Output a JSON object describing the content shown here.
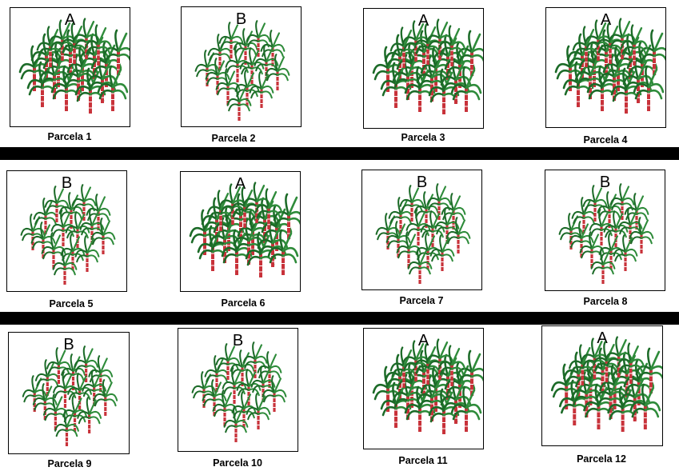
{
  "plots": [
    {
      "id": 1,
      "letter": "A",
      "label": "Parcela 1"
    },
    {
      "id": 2,
      "letter": "B",
      "label": "Parcela 2"
    },
    {
      "id": 3,
      "letter": "A",
      "label": "Parcela 3"
    },
    {
      "id": 4,
      "letter": "A",
      "label": "Parcela 4"
    },
    {
      "id": 5,
      "letter": "B",
      "label": "Parcela 5"
    },
    {
      "id": 6,
      "letter": "A",
      "label": "Parcela 6"
    },
    {
      "id": 7,
      "letter": "B",
      "label": "Parcela 7"
    },
    {
      "id": 8,
      "letter": "B",
      "label": "Parcela 8"
    },
    {
      "id": 9,
      "letter": "B",
      "label": "Parcela 9"
    },
    {
      "id": 10,
      "letter": "B",
      "label": "Parcela 10"
    },
    {
      "id": 11,
      "letter": "A",
      "label": "Parcela 11"
    },
    {
      "id": 12,
      "letter": "A",
      "label": "Parcela 12"
    }
  ],
  "colors": {
    "leaf": "#2e8b3a",
    "leaf_dark": "#1c6b28",
    "stalk": "#c8323a",
    "stalk_band": "#ffffff",
    "divider": "#000000"
  }
}
